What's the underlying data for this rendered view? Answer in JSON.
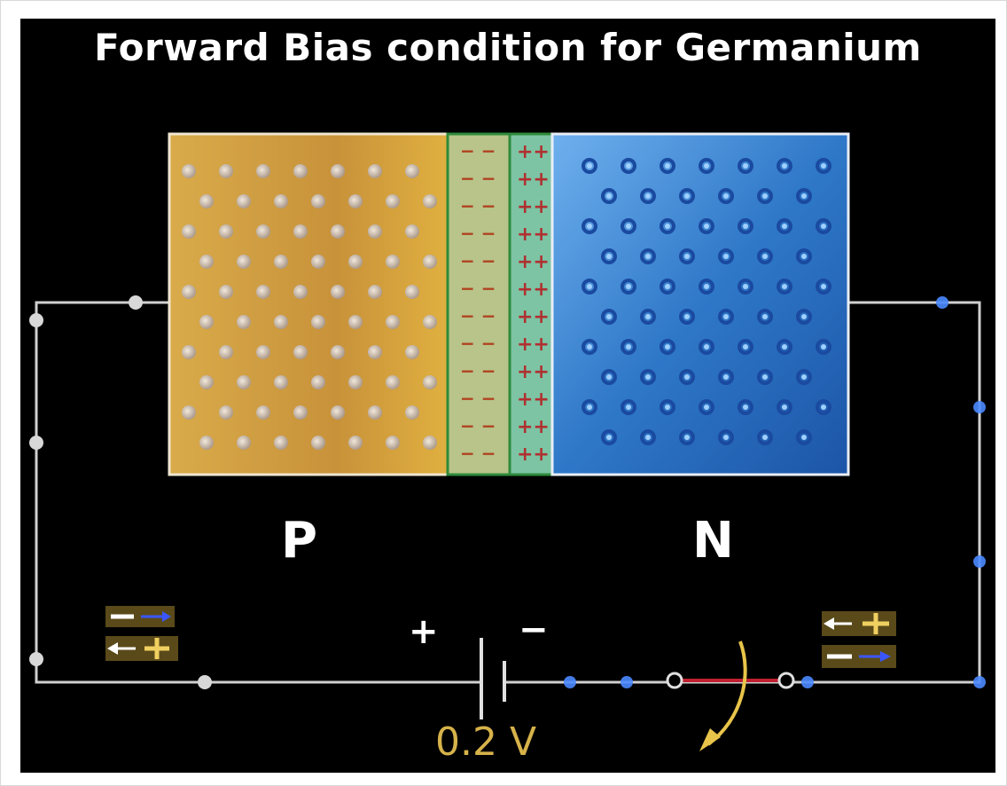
{
  "title": "Forward Bias condition for Germanium",
  "regions": {
    "p_label": "P",
    "n_label": "N"
  },
  "battery": {
    "plus": "+",
    "minus": "−",
    "voltage": "0.2 V"
  },
  "depletion": {
    "negative_symbol": "− −",
    "positive_symbol": "++"
  },
  "legend_left": {
    "row1_sign": "−",
    "row2_sign": "+"
  },
  "legend_right": {
    "row1_sign": "+",
    "row2_sign": "−"
  },
  "colors": {
    "p_region": "#c8923a",
    "n_region": "#2f78c8",
    "depletion_neg": "#b8c48a",
    "depletion_pos": "#7cc4a4",
    "wire": "#d0d0d0",
    "voltage": "#d6b24a",
    "arrow_blue": "#3a56ff",
    "curved_arrow": "#e8c44a"
  }
}
